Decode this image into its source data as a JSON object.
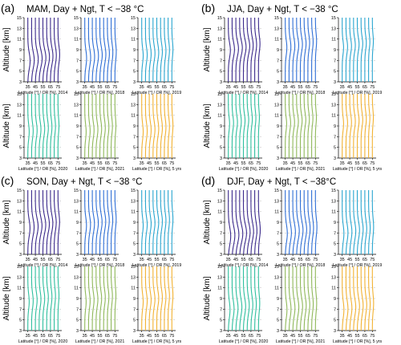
{
  "figure": {
    "panels": [
      {
        "letter": "(a)",
        "title": "MAM, Day + Ngt, T < −38 °C"
      },
      {
        "letter": "(b)",
        "title": "JJA, Day + Ngt, T < −38 °C"
      },
      {
        "letter": "(c)",
        "title": "SON, Day + Ngt, T < −38 °C"
      },
      {
        "letter": "(d)",
        "title": "DJF, Day + Ngt, T < −38°C"
      }
    ],
    "ylabel": "Altitude [km]",
    "tick_x_labels": [
      "35",
      "45",
      "55",
      "65",
      "75"
    ],
    "tick_y_labels": [
      "3",
      "5",
      "7",
      "9",
      "11",
      "13",
      "15"
    ],
    "xlabel_prefix": "Latitude [°] / OR [%],",
    "subplot_years": [
      "2014",
      "2018",
      "2019",
      "2020",
      "2021",
      "5 yrs"
    ],
    "colors": [
      "#3b2a8c",
      "#2f6fd6",
      "#2aa6d0",
      "#2fbf9e",
      "#8fb85a",
      "#f2b233"
    ],
    "gridline_color": "#b8b8b8"
  },
  "chart_data": {
    "type": "line",
    "x_axis": {
      "label_suffix": "Latitude [°] / OR [%]",
      "ticks": [
        35,
        45,
        55,
        65,
        75
      ],
      "range": [
        30,
        80
      ]
    },
    "y_axis": {
      "label": "Altitude [km]",
      "ticks": [
        3,
        5,
        7,
        9,
        11,
        13,
        15
      ],
      "range": [
        3,
        15
      ]
    },
    "latitudes": [
      35,
      40,
      45,
      50,
      55,
      60,
      65,
      70,
      75
    ],
    "profile_scale_note": "each line is an occurrence-rate profile offset at its latitude",
    "panels": [
      {
        "season": "MAM",
        "subplots": [
          {
            "year": "2014",
            "amp": 4.0,
            "peak": 7.5,
            "width": 2.2
          },
          {
            "year": "2018",
            "amp": 3.2,
            "peak": 8.0,
            "width": 2.2
          },
          {
            "year": "2019",
            "amp": 2.6,
            "peak": 8.5,
            "width": 2.0
          },
          {
            "year": "2020",
            "amp": 2.4,
            "peak": 8.5,
            "width": 2.0
          },
          {
            "year": "2021",
            "amp": 2.4,
            "peak": 8.5,
            "width": 2.0
          },
          {
            "year": "5 yrs",
            "amp": 2.6,
            "peak": 8.5,
            "width": 2.1
          }
        ]
      },
      {
        "season": "JJA",
        "subplots": [
          {
            "year": "2014",
            "amp": 3.6,
            "peak": 9.5,
            "width": 2.0
          },
          {
            "year": "2018",
            "amp": 2.8,
            "peak": 10.0,
            "width": 2.0
          },
          {
            "year": "2019",
            "amp": 2.4,
            "peak": 10.0,
            "width": 1.8
          },
          {
            "year": "2020",
            "amp": 2.2,
            "peak": 10.0,
            "width": 1.8
          },
          {
            "year": "2021",
            "amp": 2.4,
            "peak": 10.0,
            "width": 1.8
          },
          {
            "year": "5 yrs",
            "amp": 2.4,
            "peak": 10.0,
            "width": 1.9
          }
        ]
      },
      {
        "season": "SON",
        "subplots": [
          {
            "year": "2014",
            "amp": 3.8,
            "peak": 8.5,
            "width": 2.2
          },
          {
            "year": "2018",
            "amp": 3.0,
            "peak": 9.0,
            "width": 2.1
          },
          {
            "year": "2019",
            "amp": 2.6,
            "peak": 9.0,
            "width": 2.0
          },
          {
            "year": "2020",
            "amp": 2.4,
            "peak": 9.0,
            "width": 2.0
          },
          {
            "year": "2021",
            "amp": 2.4,
            "peak": 9.0,
            "width": 2.0
          },
          {
            "year": "5 yrs",
            "amp": 2.6,
            "peak": 9.0,
            "width": 2.0
          }
        ]
      },
      {
        "season": "DJF",
        "subplots": [
          {
            "year": "2014",
            "amp": 4.2,
            "peak": 7.0,
            "width": 2.3
          },
          {
            "year": "2018",
            "amp": 3.6,
            "peak": 7.5,
            "width": 2.3
          },
          {
            "year": "2019",
            "amp": 3.0,
            "peak": 7.5,
            "width": 2.2
          },
          {
            "year": "2020",
            "amp": 3.0,
            "peak": 7.5,
            "width": 2.2
          },
          {
            "year": "2021",
            "amp": 3.0,
            "peak": 7.5,
            "width": 2.2
          },
          {
            "year": "5 yrs",
            "amp": 3.0,
            "peak": 7.5,
            "width": 2.2
          }
        ]
      }
    ]
  }
}
